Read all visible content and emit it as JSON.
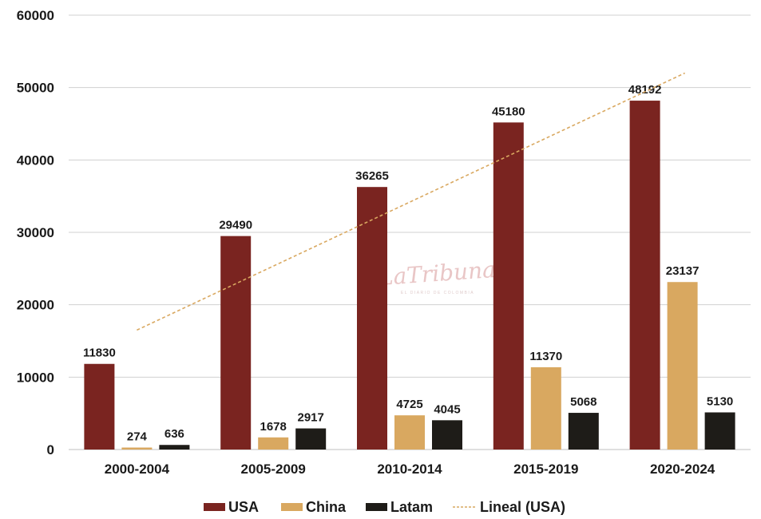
{
  "chart_data": {
    "type": "bar",
    "title": "",
    "xlabel": "",
    "ylabel": "",
    "ylim": [
      0,
      60000
    ],
    "yticks": [
      0,
      10000,
      20000,
      30000,
      40000,
      50000,
      60000
    ],
    "grid": true,
    "legend_position": "bottom",
    "categories": [
      "2000-2004",
      "2005-2009",
      "2010-2014",
      "2015-2019",
      "2020-2024"
    ],
    "series": [
      {
        "name": "USA",
        "color": "#7a2420",
        "values": [
          11830,
          29490,
          36265,
          45180,
          48192
        ]
      },
      {
        "name": "China",
        "color": "#d9a860",
        "values": [
          274,
          1678,
          4725,
          11370,
          23137
        ]
      },
      {
        "name": "Latam",
        "color": "#1e1c18",
        "values": [
          636,
          2917,
          4045,
          5068,
          5130
        ]
      }
    ],
    "trendline": {
      "name": "Lineal (USA)",
      "color": "#d9a860",
      "series": "USA",
      "start_value": 16500,
      "end_value": 52000
    },
    "watermark": {
      "text": "LaTribuna",
      "subtitle": "EL DIARIO DE COLOMBIA"
    }
  }
}
